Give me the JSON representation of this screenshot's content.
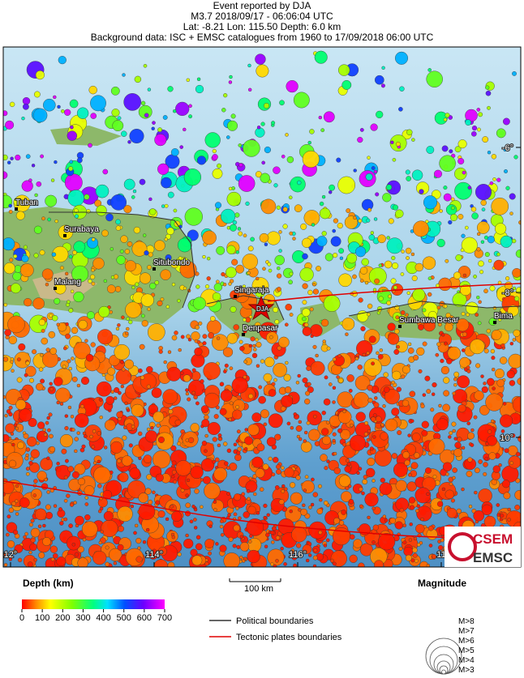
{
  "header": {
    "line1": "Event reported by DJA",
    "line2": "M3.7  2018/09/17 - 06:06:04 UTC",
    "line3": "Lat: -8.21   Lon: 115.50    Depth:  6.0 km",
    "line4": "Background data: ISC + EMSC catalogues from 1960 to 17/09/2018 06:00 UTC"
  },
  "map": {
    "event_label": "DJA",
    "lon_ticks": [
      {
        "value": 112,
        "label": "12°"
      },
      {
        "value": 114,
        "label": "114°"
      },
      {
        "value": 116,
        "label": "116°"
      },
      {
        "value": 118,
        "label": "11"
      }
    ],
    "lat_ticks": [
      {
        "value": -6,
        "label": "-6°"
      },
      {
        "value": -8,
        "label": "-8°"
      },
      {
        "value": -10,
        "label": "10°"
      }
    ],
    "places": [
      "Tuban",
      "Surabaya",
      "Situbondo",
      "Malang",
      "Singaraja",
      "Denpasar",
      "Sumbawa Besar",
      "Bima"
    ],
    "logo": [
      "CSEM",
      "EMSC"
    ]
  },
  "legend": {
    "scale_bar": "100 km",
    "depth_title": "Depth (km)",
    "depth_ticks": [
      0,
      100,
      200,
      300,
      400,
      500,
      600,
      700
    ],
    "lines": [
      "Political boundaries",
      "Tectonic plates boundaries"
    ],
    "magnitude_title": "Magnitude",
    "magnitudes": [
      "M>8",
      "M>7",
      "M>6",
      "M>5",
      "M>4",
      "M>3"
    ]
  }
}
